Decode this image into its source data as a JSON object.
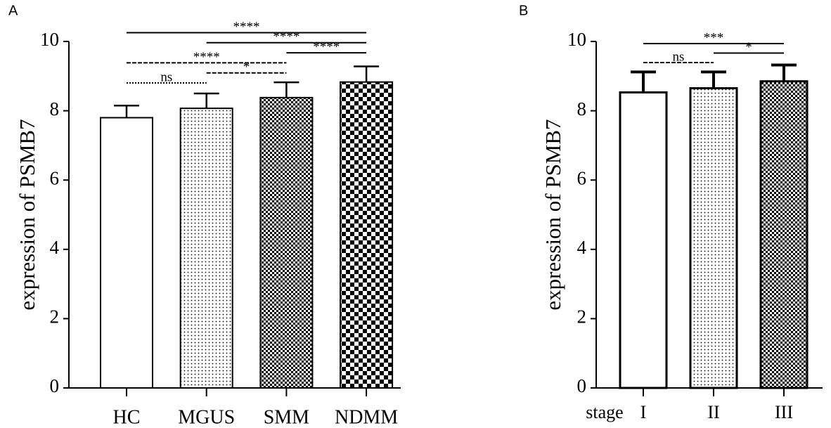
{
  "chart_data": [
    {
      "type": "bar",
      "panel": "A",
      "ylabel": "expression of  PSMB7",
      "categories": [
        "HC",
        "MGUS",
        "SMM",
        "NDMM"
      ],
      "values": [
        7.8,
        8.07,
        8.38,
        8.83
      ],
      "errors": [
        0.35,
        0.43,
        0.44,
        0.45
      ],
      "patterns": [
        "none",
        "dots",
        "checks-small",
        "checks-large"
      ],
      "color": "#000000",
      "ylim": [
        0,
        10
      ],
      "yticks": [
        0,
        2,
        4,
        6,
        8,
        10
      ],
      "significance": [
        {
          "between": [
            "HC",
            "MGUS"
          ],
          "label": "ns",
          "line": "dotted"
        },
        {
          "between": [
            "MGUS",
            "SMM"
          ],
          "label": "*",
          "line": "dashed"
        },
        {
          "between": [
            "HC",
            "SMM"
          ],
          "label": "****",
          "line": "dashed"
        },
        {
          "between": [
            "SMM",
            "NDMM"
          ],
          "label": "****",
          "line": "solid"
        },
        {
          "between": [
            "MGUS",
            "NDMM"
          ],
          "label": "****",
          "line": "solid"
        },
        {
          "between": [
            "HC",
            "NDMM"
          ],
          "label": "****",
          "line": "solid"
        }
      ]
    },
    {
      "type": "bar",
      "panel": "B",
      "ylabel": "expression of  PSMB7",
      "xlabel": "stage",
      "categories": [
        "I",
        "II",
        "III"
      ],
      "values": [
        8.53,
        8.65,
        8.85
      ],
      "errors": [
        0.59,
        0.47,
        0.47
      ],
      "patterns": [
        "none",
        "dots",
        "checks-small"
      ],
      "color": "#000000",
      "ylim": [
        0,
        10
      ],
      "yticks": [
        0,
        2,
        4,
        6,
        8,
        10
      ],
      "significance": [
        {
          "between": [
            "I",
            "II"
          ],
          "label": "ns",
          "line": "dashed"
        },
        {
          "between": [
            "II",
            "III"
          ],
          "label": "*",
          "line": "solid"
        },
        {
          "between": [
            "I",
            "III"
          ],
          "label": "***",
          "line": "solid"
        }
      ]
    }
  ]
}
